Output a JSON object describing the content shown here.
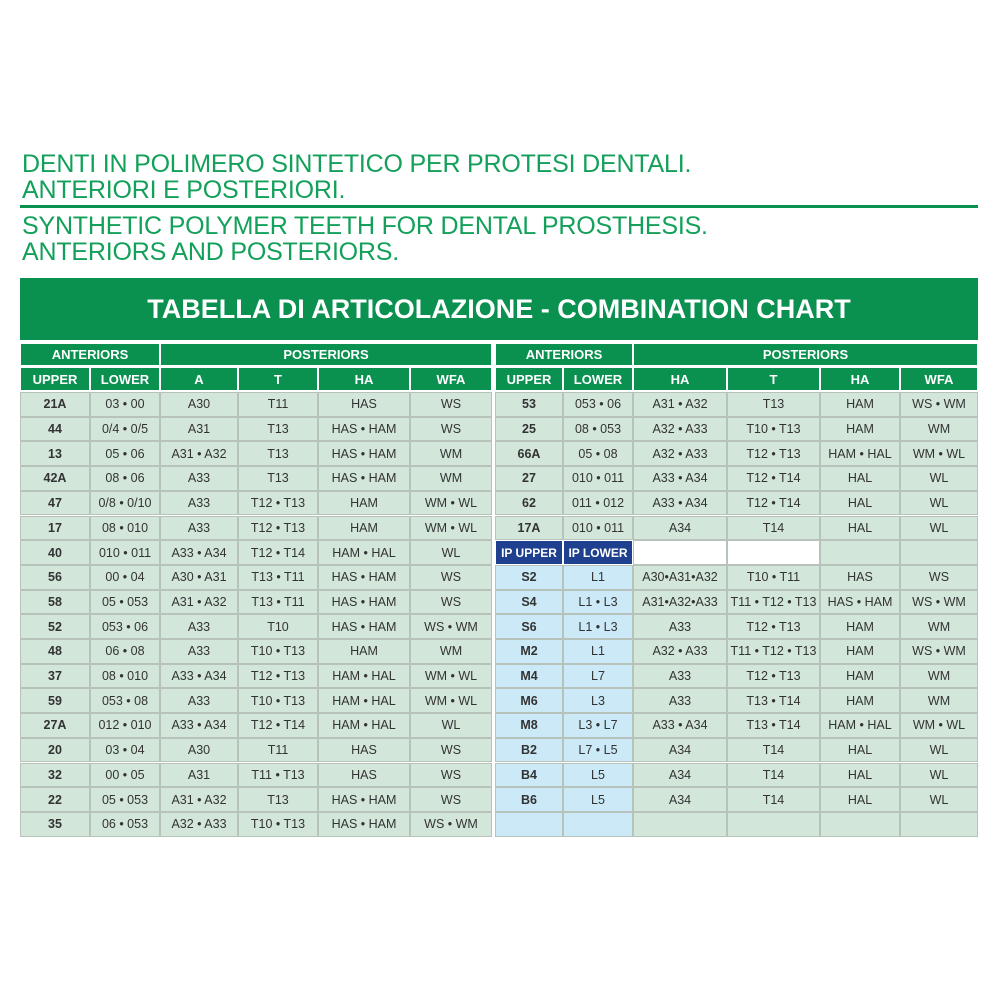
{
  "header": {
    "lines": [
      "DENTI IN POLIMERO SINTETICO PER PROTESI DENTALI.",
      "ANTERIORI E POSTERIORI.",
      "SYNTHETIC POLYMER TEETH FOR DENTAL PROSTHESIS.",
      "ANTERIORS AND POSTERIORS."
    ]
  },
  "banner": {
    "title": "TABELLA DI ARTICOLAZIONE - COMBINATION CHART"
  },
  "left": {
    "group_headers": [
      "ANTERIORS",
      "POSTERIORS"
    ],
    "columns": [
      "UPPER",
      "LOWER",
      "A",
      "T",
      "HA",
      "WFA"
    ],
    "rows": [
      [
        "21A",
        "03 • 00",
        "A30",
        "T11",
        "HAS",
        "WS"
      ],
      [
        "44",
        "0/4 • 0/5",
        "A31",
        "T13",
        "HAS • HAM",
        "WS"
      ],
      [
        "13",
        "05 • 06",
        "A31 • A32",
        "T13",
        "HAS • HAM",
        "WM"
      ],
      [
        "42A",
        "08 • 06",
        "A33",
        "T13",
        "HAS • HAM",
        "WM"
      ],
      [
        "47",
        "0/8 • 0/10",
        "A33",
        "T12 • T13",
        "HAM",
        "WM • WL"
      ],
      [
        "17",
        "08 • 010",
        "A33",
        "T12 • T13",
        "HAM",
        "WM • WL"
      ],
      [
        "40",
        "010 • 011",
        "A33 • A34",
        "T12 • T14",
        "HAM • HAL",
        "WL"
      ],
      [
        "56",
        "00 • 04",
        "A30 • A31",
        "T13 • T11",
        "HAS • HAM",
        "WS"
      ],
      [
        "58",
        "05 • 053",
        "A31 • A32",
        "T13 • T11",
        "HAS • HAM",
        "WS"
      ],
      [
        "52",
        "053 • 06",
        "A33",
        "T10",
        "HAS • HAM",
        "WS • WM"
      ],
      [
        "48",
        "06 • 08",
        "A33",
        "T10 • T13",
        "HAM",
        "WM"
      ],
      [
        "37",
        "08 • 010",
        "A33 • A34",
        "T12 • T13",
        "HAM • HAL",
        "WM • WL"
      ],
      [
        "59",
        "053 • 08",
        "A33",
        "T10 • T13",
        "HAM • HAL",
        "WM • WL"
      ],
      [
        "27A",
        "012 • 010",
        "A33 • A34",
        "T12 • T14",
        "HAM • HAL",
        "WL"
      ],
      [
        "20",
        "03 • 04",
        "A30",
        "T11",
        "HAS",
        "WS"
      ],
      [
        "32",
        "00 • 05",
        "A31",
        "T11 • T13",
        "HAS",
        "WS"
      ],
      [
        "22",
        "05 • 053",
        "A31 • A32",
        "T13",
        "HAS • HAM",
        "WS"
      ],
      [
        "35",
        "06 • 053",
        "A32 • A33",
        "T10 • T13",
        "HAS • HAM",
        "WS • WM"
      ]
    ]
  },
  "right": {
    "group_headers": [
      "ANTERIORS",
      "POSTERIORS"
    ],
    "columns": [
      "UPPER",
      "LOWER",
      "HA",
      "T",
      "HA",
      "WFA"
    ],
    "rows": [
      [
        "53",
        "053 • 06",
        "A31 • A32",
        "T13",
        "HAM",
        "WS • WM"
      ],
      [
        "25",
        "08 • 053",
        "A32 • A33",
        "T10 • T13",
        "HAM",
        "WM"
      ],
      [
        "66A",
        "05 • 08",
        "A32 • A33",
        "T12 • T13",
        "HAM • HAL",
        "WM • WL"
      ],
      [
        "27",
        "010 • 011",
        "A33 • A34",
        "T12 • T14",
        "HAL",
        "WL"
      ],
      [
        "62",
        "011 • 012",
        "A33 • A34",
        "T12 • T14",
        "HAL",
        "WL"
      ],
      [
        "17A",
        "010 • 011",
        "A34",
        "T14",
        "HAL",
        "WL"
      ]
    ],
    "ip_columns": [
      "IP UPPER",
      "IP LOWER"
    ],
    "ip_rows": [
      [
        "S2",
        "L1",
        "A30•A31•A32",
        "T10 • T11",
        "HAS",
        "WS"
      ],
      [
        "S4",
        "L1 • L3",
        "A31•A32•A33",
        "T11 • T12 • T13",
        "HAS • HAM",
        "WS • WM"
      ],
      [
        "S6",
        "L1 • L3",
        "A33",
        "T12 • T13",
        "HAM",
        "WM"
      ],
      [
        "M2",
        "L1",
        "A32 • A33",
        "T11 • T12 • T13",
        "HAM",
        "WS • WM"
      ],
      [
        "M4",
        "L7",
        "A33",
        "T12 • T13",
        "HAM",
        "WM"
      ],
      [
        "M6",
        "L3",
        "A33",
        "T13 • T14",
        "HAM",
        "WM"
      ],
      [
        "M8",
        "L3 • L7",
        "A33 • A34",
        "T13 • T14",
        "HAM • HAL",
        "WM • WL"
      ],
      [
        "B2",
        "L7 • L5",
        "A34",
        "T14",
        "HAL",
        "WL"
      ],
      [
        "B4",
        "L5",
        "A34",
        "T14",
        "HAL",
        "WL"
      ],
      [
        "B6",
        "L5",
        "A34",
        "T14",
        "HAL",
        "WL"
      ]
    ]
  }
}
